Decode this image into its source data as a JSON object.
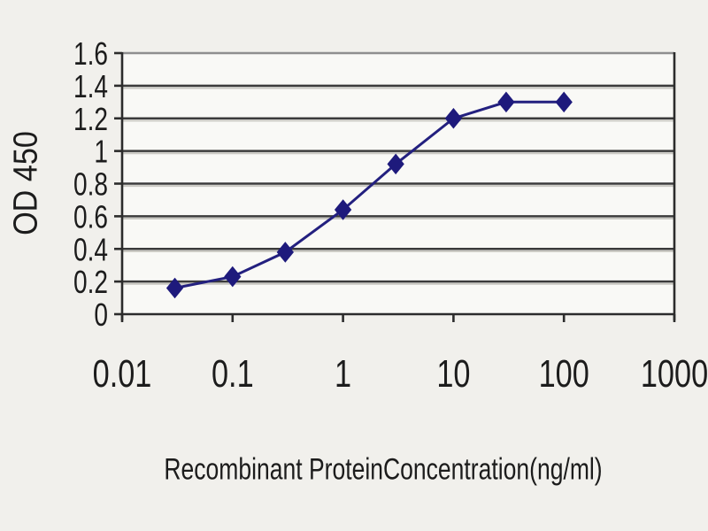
{
  "figure": {
    "background": "#f1f0ec",
    "plot_fill": "#f9f9f6"
  },
  "chart_data": {
    "type": "line",
    "title": "",
    "xlabel": "Recombinant ProteinConcentration(ng/ml)",
    "ylabel": "OD 450",
    "x_scale": "log",
    "xlim": [
      0.01,
      1000
    ],
    "ylim": [
      0,
      1.6
    ],
    "x_ticks": [
      "0.01",
      "0.1",
      "1",
      "10",
      "100",
      "1000"
    ],
    "y_ticks": [
      "0",
      "0.2",
      "0.4",
      "0.6",
      "0.8",
      "1",
      "1.2",
      "1.4",
      "1.6"
    ],
    "x": [
      0.03,
      0.1,
      0.3,
      1,
      3,
      10,
      30,
      100
    ],
    "series": [
      {
        "name": "OD 450",
        "values": [
          0.16,
          0.23,
          0.38,
          0.64,
          0.92,
          1.2,
          1.3,
          1.3
        ]
      }
    ],
    "grid": "horizontal",
    "legend": "none",
    "marker": "diamond",
    "colors": {
      "line": "#23207f",
      "marker": "#1e1a7c",
      "gridline": "#3b3b3b",
      "axis": "#2c2c2c",
      "text": "#1c1c1c"
    }
  }
}
